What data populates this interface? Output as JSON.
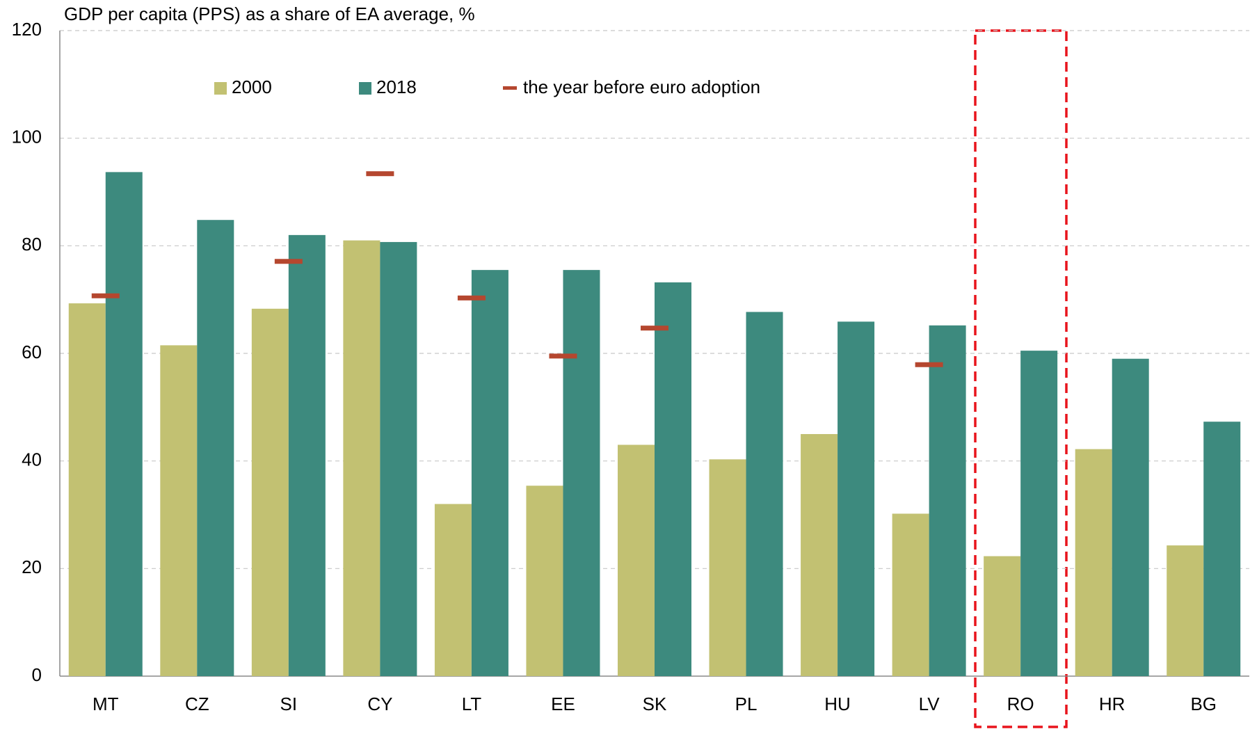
{
  "chart_data": {
    "type": "bar",
    "title": "GDP per capita (PPS) as a share of EA average, %",
    "categories": [
      "MT",
      "CZ",
      "SI",
      "CY",
      "LT",
      "EE",
      "SK",
      "PL",
      "HU",
      "LV",
      "RO",
      "HR",
      "BG"
    ],
    "series": [
      {
        "name": "2000",
        "color": "#c2c172",
        "values": [
          69.3,
          61.5,
          68.3,
          81.0,
          32.0,
          35.4,
          43.0,
          40.3,
          45.0,
          30.2,
          22.3,
          42.2,
          24.3
        ]
      },
      {
        "name": "2018",
        "color": "#3d8a7e",
        "values": [
          93.7,
          84.8,
          82.0,
          80.7,
          75.5,
          75.5,
          73.2,
          67.7,
          65.9,
          65.2,
          60.5,
          59.0,
          47.3
        ]
      },
      {
        "name": "the year before euro adoption",
        "color": "#b5472f",
        "style": "dash",
        "values": [
          70.7,
          null,
          77.1,
          93.4,
          70.3,
          59.5,
          64.7,
          null,
          null,
          57.9,
          null,
          null,
          null
        ]
      }
    ],
    "ylim": [
      0,
      120
    ],
    "yticks": [
      0,
      20,
      40,
      60,
      80,
      100,
      120
    ],
    "grid": true
  }
}
